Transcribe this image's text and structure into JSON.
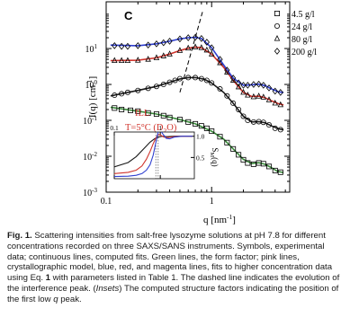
{
  "chart_data": {
    "type": "scatter",
    "panel_label": "C",
    "xlabel": "q [nm",
    "xlabel_sup": "-1",
    "xlabel_close": "]",
    "ylabel": "I(q) [cm",
    "ylabel_sup": "-1",
    "ylabel_close": "]",
    "x_scale": "log",
    "y_scale": "log",
    "xlim": [
      0.1,
      5.5
    ],
    "ylim": [
      0.001,
      200
    ],
    "x_ticks": [
      {
        "value": 0.1,
        "label": "0.1"
      },
      {
        "value": 1,
        "label": "1"
      }
    ],
    "y_ticks": [
      {
        "value": 0.001,
        "label": "10",
        "exp": "-3"
      },
      {
        "value": 0.01,
        "label": "10",
        "exp": "-2"
      },
      {
        "value": 0.1,
        "label": "10",
        "exp": "-1"
      },
      {
        "value": 1,
        "label": "10",
        "exp": "0"
      },
      {
        "value": 10,
        "label": "10",
        "exp": "1"
      }
    ],
    "annotation": {
      "line1": "ILL",
      "line2_pre": "T=5°C (D",
      "line2_sub": "2",
      "line2_post": "O)",
      "color": "#d0342c"
    },
    "legend": {
      "position": "top-right",
      "entries": [
        {
          "marker": "square",
          "label": "4.5 g/l"
        },
        {
          "marker": "circle",
          "label": "24 g/l"
        },
        {
          "marker": "triangle",
          "label": "80 g/l"
        },
        {
          "marker": "diamond",
          "label": "200 g/l"
        }
      ]
    },
    "series": [
      {
        "marker": "square",
        "fit_color": "#3a8a3a",
        "points": [
          [
            0.12,
            0.22
          ],
          [
            0.14,
            0.2
          ],
          [
            0.17,
            0.19
          ],
          [
            0.2,
            0.18
          ],
          [
            0.25,
            0.16
          ],
          [
            0.3,
            0.15
          ],
          [
            0.35,
            0.135
          ],
          [
            0.4,
            0.12
          ],
          [
            0.5,
            0.105
          ],
          [
            0.6,
            0.09
          ],
          [
            0.7,
            0.08
          ],
          [
            0.8,
            0.07
          ],
          [
            0.9,
            0.06
          ],
          [
            1.0,
            0.05
          ],
          [
            1.2,
            0.035
          ],
          [
            1.4,
            0.024
          ],
          [
            1.6,
            0.016
          ],
          [
            1.8,
            0.011
          ],
          [
            2.0,
            0.008
          ],
          [
            2.2,
            0.0065
          ],
          [
            2.5,
            0.006
          ],
          [
            2.8,
            0.0065
          ],
          [
            3.1,
            0.0062
          ],
          [
            3.5,
            0.0052
          ],
          [
            4.0,
            0.004
          ],
          [
            4.5,
            0.0036
          ]
        ],
        "fit": [
          [
            0.11,
            0.23
          ],
          [
            0.2,
            0.18
          ],
          [
            0.3,
            0.15
          ],
          [
            0.5,
            0.105
          ],
          [
            0.7,
            0.08
          ],
          [
            1.0,
            0.05
          ],
          [
            1.3,
            0.03
          ],
          [
            1.6,
            0.016
          ],
          [
            2.0,
            0.0082
          ],
          [
            2.4,
            0.0063
          ],
          [
            2.8,
            0.0066
          ],
          [
            3.2,
            0.006
          ],
          [
            3.6,
            0.005
          ],
          [
            4.2,
            0.0038
          ],
          [
            4.8,
            0.0035
          ]
        ]
      },
      {
        "marker": "circle",
        "fit_color": "#1a1a1a",
        "points": [
          [
            0.12,
            0.5
          ],
          [
            0.14,
            0.55
          ],
          [
            0.16,
            0.6
          ],
          [
            0.2,
            0.68
          ],
          [
            0.25,
            0.78
          ],
          [
            0.3,
            0.88
          ],
          [
            0.35,
            1.0
          ],
          [
            0.4,
            1.15
          ],
          [
            0.45,
            1.3
          ],
          [
            0.5,
            1.45
          ],
          [
            0.6,
            1.55
          ],
          [
            0.7,
            1.55
          ],
          [
            0.8,
            1.45
          ],
          [
            0.9,
            1.3
          ],
          [
            1.0,
            1.1
          ],
          [
            1.2,
            0.75
          ],
          [
            1.4,
            0.48
          ],
          [
            1.6,
            0.3
          ],
          [
            1.8,
            0.2
          ],
          [
            2.0,
            0.13
          ],
          [
            2.2,
            0.1
          ],
          [
            2.5,
            0.09
          ],
          [
            2.8,
            0.092
          ],
          [
            3.1,
            0.088
          ],
          [
            3.5,
            0.075
          ],
          [
            4.0,
            0.06
          ],
          [
            4.5,
            0.055
          ]
        ],
        "fit": [
          [
            0.11,
            0.48
          ],
          [
            0.2,
            0.68
          ],
          [
            0.3,
            0.88
          ],
          [
            0.4,
            1.15
          ],
          [
            0.5,
            1.42
          ],
          [
            0.6,
            1.55
          ],
          [
            0.7,
            1.55
          ],
          [
            0.85,
            1.4
          ],
          [
            1.0,
            1.1
          ],
          [
            1.3,
            0.6
          ],
          [
            1.6,
            0.3
          ],
          [
            2.0,
            0.13
          ],
          [
            2.4,
            0.09
          ],
          [
            2.8,
            0.092
          ],
          [
            3.2,
            0.086
          ],
          [
            3.7,
            0.07
          ],
          [
            4.3,
            0.058
          ],
          [
            4.8,
            0.055
          ]
        ]
      },
      {
        "marker": "triangle",
        "fit_color": "#d0342c",
        "points": [
          [
            0.12,
            4.6
          ],
          [
            0.14,
            4.6
          ],
          [
            0.16,
            4.6
          ],
          [
            0.2,
            4.7
          ],
          [
            0.25,
            5.0
          ],
          [
            0.3,
            5.5
          ],
          [
            0.35,
            6.2
          ],
          [
            0.4,
            7.0
          ],
          [
            0.5,
            8.8
          ],
          [
            0.6,
            10.2
          ],
          [
            0.7,
            11.0
          ],
          [
            0.8,
            10.5
          ],
          [
            0.9,
            9.0
          ],
          [
            1.0,
            7.0
          ],
          [
            1.2,
            4.0
          ],
          [
            1.4,
            2.2
          ],
          [
            1.6,
            1.3
          ],
          [
            1.8,
            0.85
          ],
          [
            2.0,
            0.6
          ],
          [
            2.2,
            0.5
          ],
          [
            2.5,
            0.45
          ],
          [
            2.8,
            0.47
          ],
          [
            3.1,
            0.44
          ],
          [
            3.5,
            0.37
          ],
          [
            4.0,
            0.3
          ],
          [
            4.5,
            0.27
          ]
        ],
        "fit": [
          [
            0.11,
            4.6
          ],
          [
            0.2,
            4.7
          ],
          [
            0.3,
            5.5
          ],
          [
            0.4,
            7.0
          ],
          [
            0.5,
            8.8
          ],
          [
            0.6,
            10.2
          ],
          [
            0.7,
            11.0
          ],
          [
            0.8,
            10.5
          ],
          [
            1.0,
            7.0
          ],
          [
            1.3,
            3.0
          ],
          [
            1.6,
            1.3
          ],
          [
            2.0,
            0.6
          ],
          [
            2.4,
            0.46
          ],
          [
            2.8,
            0.47
          ],
          [
            3.2,
            0.43
          ],
          [
            3.7,
            0.35
          ],
          [
            4.3,
            0.29
          ],
          [
            4.8,
            0.27
          ]
        ]
      },
      {
        "marker": "diamond",
        "fit_color": "#2f3fd0",
        "points": [
          [
            0.12,
            12.0
          ],
          [
            0.14,
            11.5
          ],
          [
            0.16,
            11.5
          ],
          [
            0.2,
            12.0
          ],
          [
            0.25,
            12.5
          ],
          [
            0.3,
            13.5
          ],
          [
            0.35,
            14.5
          ],
          [
            0.4,
            16.0
          ],
          [
            0.5,
            18.5
          ],
          [
            0.6,
            20.0
          ],
          [
            0.7,
            20.5
          ],
          [
            0.8,
            19.0
          ],
          [
            0.9,
            15.0
          ],
          [
            1.0,
            10.5
          ],
          [
            1.2,
            5.0
          ],
          [
            1.4,
            2.5
          ],
          [
            1.6,
            1.5
          ],
          [
            1.8,
            1.1
          ],
          [
            2.0,
            0.95
          ],
          [
            2.2,
            0.95
          ],
          [
            2.5,
            1.0
          ],
          [
            2.8,
            1.02
          ],
          [
            3.1,
            0.95
          ],
          [
            3.5,
            0.8
          ],
          [
            4.0,
            0.65
          ],
          [
            4.5,
            0.6
          ]
        ],
        "fit": [
          [
            0.11,
            12.5
          ],
          [
            0.2,
            12.0
          ],
          [
            0.3,
            13.5
          ],
          [
            0.4,
            16.0
          ],
          [
            0.5,
            18.5
          ],
          [
            0.6,
            20.0
          ],
          [
            0.7,
            20.5
          ],
          [
            0.8,
            19.0
          ],
          [
            1.0,
            10.5
          ],
          [
            1.3,
            3.5
          ],
          [
            1.6,
            1.5
          ],
          [
            2.0,
            0.95
          ],
          [
            2.4,
            0.98
          ],
          [
            2.8,
            1.02
          ],
          [
            3.2,
            0.93
          ],
          [
            3.7,
            0.75
          ],
          [
            4.3,
            0.62
          ],
          [
            4.8,
            0.6
          ]
        ]
      }
    ],
    "dashed_line": [
      [
        0.5,
        0.6
      ],
      [
        0.83,
        120
      ]
    ],
    "inset": {
      "ylabel": "S",
      "ylabel_sub": "M",
      "ylabel_tail": "(q)",
      "x_scale": "log",
      "xlim": [
        0.1,
        5.5
      ],
      "ylim": [
        0.0,
        1.1
      ],
      "x_ticks": [
        {
          "value": 0.1,
          "label": "0.1"
        },
        {
          "value": 1,
          "label": "1"
        }
      ],
      "y_ticks": [
        {
          "value": 0.5,
          "label": "0.5"
        },
        {
          "value": 1.0,
          "label": "1.0"
        }
      ],
      "curves": [
        {
          "color": "#1a1a1a",
          "points": [
            [
              0.1,
              0.28
            ],
            [
              0.2,
              0.38
            ],
            [
              0.3,
              0.52
            ],
            [
              0.45,
              0.72
            ],
            [
              0.6,
              0.86
            ],
            [
              0.75,
              0.94
            ],
            [
              0.9,
              0.98
            ],
            [
              1.1,
              1.0
            ],
            [
              1.4,
              0.99
            ],
            [
              2,
              1.0
            ],
            [
              3,
              1.0
            ],
            [
              5,
              1.0
            ]
          ]
        },
        {
          "color": "#d0342c",
          "points": [
            [
              0.1,
              0.12
            ],
            [
              0.2,
              0.15
            ],
            [
              0.3,
              0.2
            ],
            [
              0.4,
              0.3
            ],
            [
              0.5,
              0.46
            ],
            [
              0.6,
              0.64
            ],
            [
              0.7,
              0.82
            ],
            [
              0.8,
              0.96
            ],
            [
              0.9,
              1.04
            ],
            [
              1.0,
              1.03
            ],
            [
              1.2,
              0.98
            ],
            [
              1.5,
              0.97
            ],
            [
              2,
              0.99
            ],
            [
              3,
              1.0
            ],
            [
              5,
              1.0
            ]
          ]
        },
        {
          "color": "#2f3fd0",
          "points": [
            [
              0.1,
              0.05
            ],
            [
              0.2,
              0.06
            ],
            [
              0.3,
              0.08
            ],
            [
              0.4,
              0.12
            ],
            [
              0.5,
              0.2
            ],
            [
              0.6,
              0.33
            ],
            [
              0.7,
              0.55
            ],
            [
              0.8,
              0.85
            ],
            [
              0.9,
              1.1
            ],
            [
              1.0,
              1.14
            ],
            [
              1.15,
              1.05
            ],
            [
              1.35,
              0.95
            ],
            [
              1.6,
              0.94
            ],
            [
              2,
              0.98
            ],
            [
              3,
              1.0
            ],
            [
              5,
              1.0
            ]
          ]
        }
      ],
      "dotted_at": [
        0.8,
        0.9
      ]
    }
  },
  "caption": {
    "fig_label": "Fig. 1.",
    "text_1": "   Scattering intensities from salt-free lysozyme solutions at pH 7.8 for different concentrations recorded on three SAXS/SANS instruments. Symbols, experimental data; continuous lines, computed fits. Green lines, the form factor; pink lines, crystallographic model, blue, red, and magenta lines, fits to higher concentration data using Eq. ",
    "eq_num": "1",
    "text_2": " with parameters listed in Table 1. The dashed line indicates the evolution of the interference peak. (",
    "insets": "Insets",
    "text_3": ") The computed structure factors indicating the position of the first low ",
    "q": "q",
    "text_4": " peak."
  }
}
